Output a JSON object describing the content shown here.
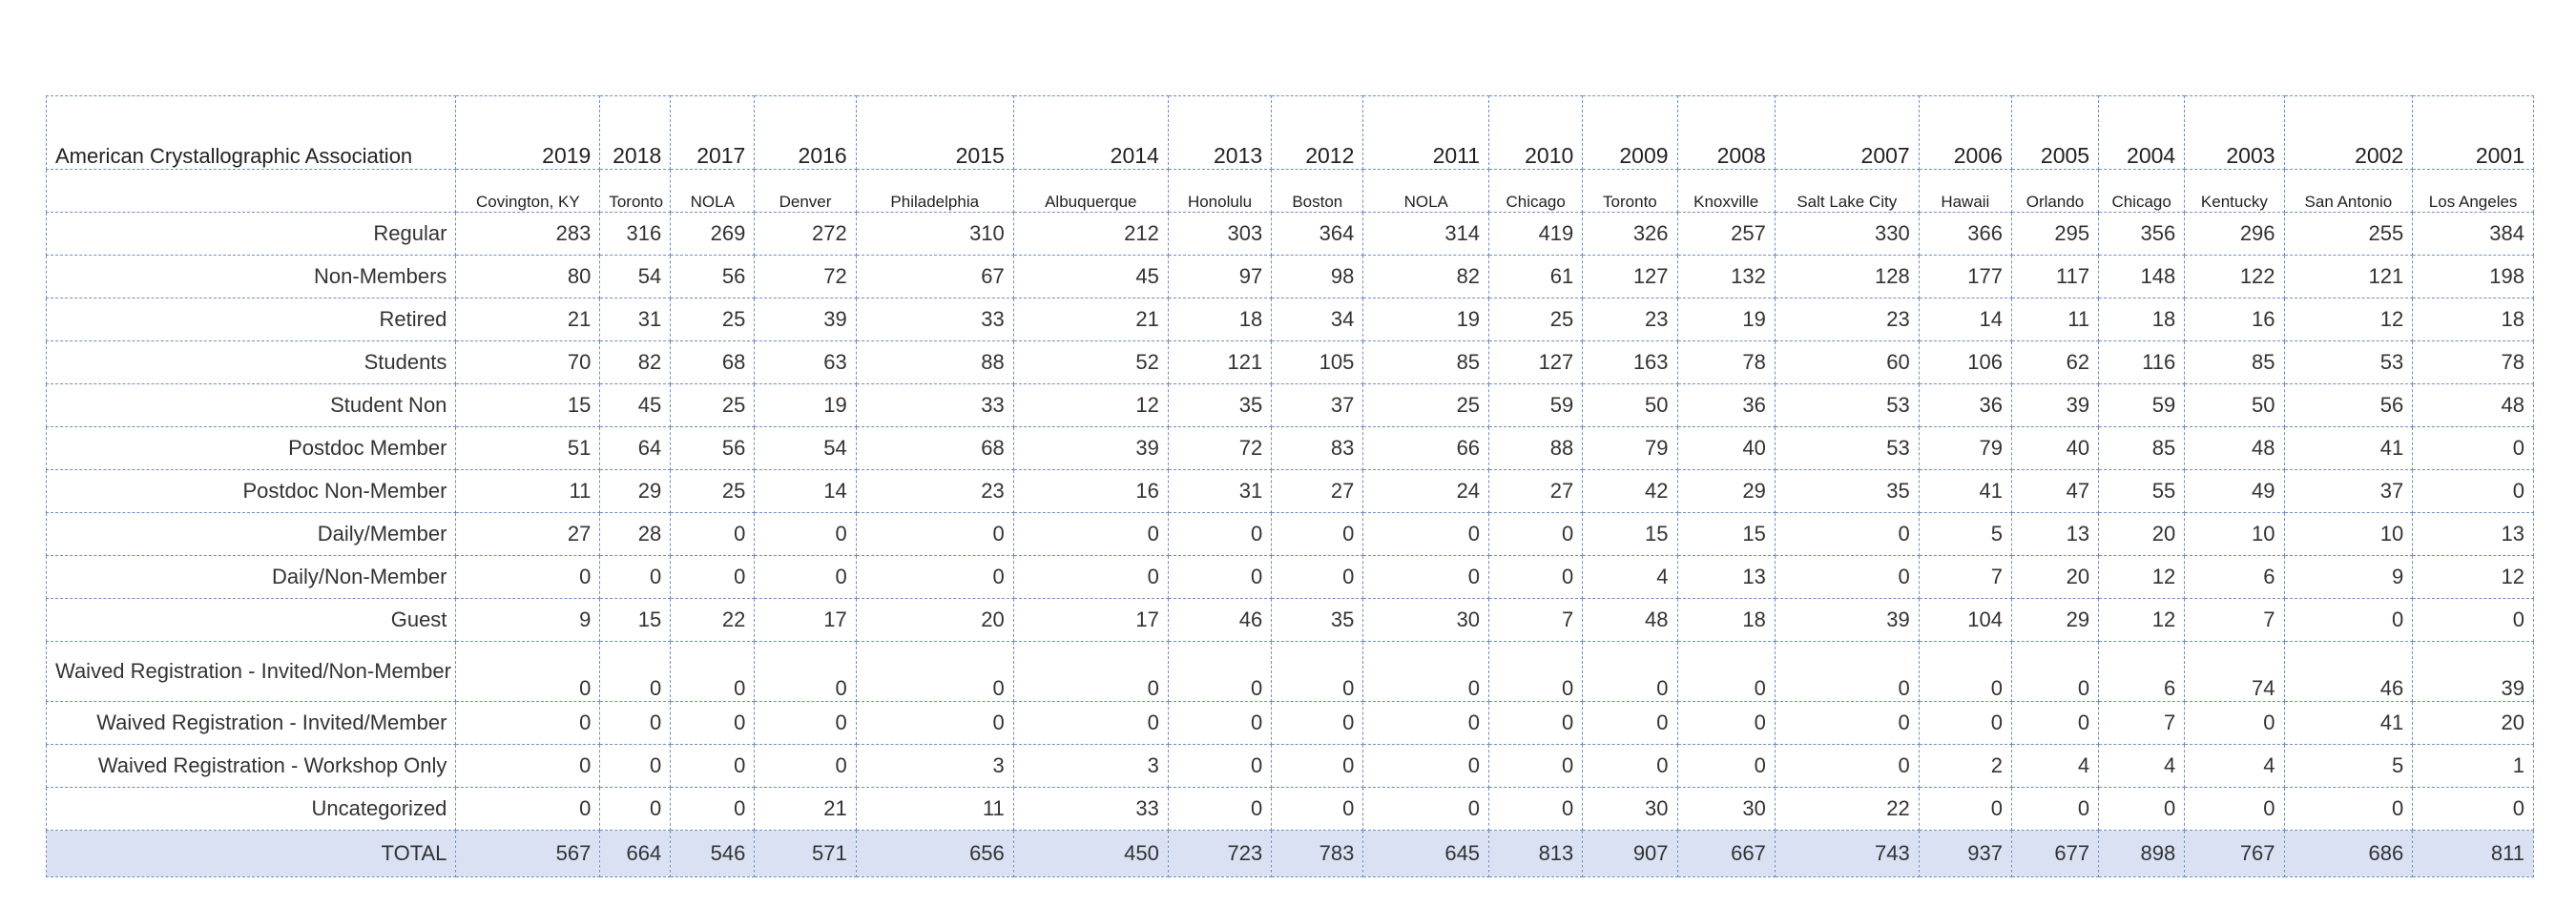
{
  "table": {
    "organization": "American Crystallographic Association",
    "years": [
      "2019",
      "2018",
      "2017",
      "2016",
      "2015",
      "2014",
      "2013",
      "2012",
      "2011",
      "2010",
      "2009",
      "2008",
      "2007",
      "2006",
      "2005",
      "2004",
      "2003",
      "2002",
      "2001"
    ],
    "cities": [
      "Covington, KY",
      "Toronto",
      "NOLA",
      "Denver",
      "Philadelphia",
      "Albuquerque",
      "Honolulu",
      "Boston",
      "NOLA",
      "Chicago",
      "Toronto",
      "Knoxville",
      "Salt Lake City",
      "Hawaii",
      "Orlando",
      "Chicago",
      "Kentucky",
      "San Antonio",
      "Los Angeles"
    ],
    "rows": [
      {
        "label": "Regular",
        "values": [
          "283",
          "316",
          "269",
          "272",
          "310",
          "212",
          "303",
          "364",
          "314",
          "419",
          "326",
          "257",
          "330",
          "366",
          "295",
          "356",
          "296",
          "255",
          "384"
        ]
      },
      {
        "label": "Non-Members",
        "values": [
          "80",
          "54",
          "56",
          "72",
          "67",
          "45",
          "97",
          "98",
          "82",
          "61",
          "127",
          "132",
          "128",
          "177",
          "117",
          "148",
          "122",
          "121",
          "198"
        ]
      },
      {
        "label": "Retired",
        "values": [
          "21",
          "31",
          "25",
          "39",
          "33",
          "21",
          "18",
          "34",
          "19",
          "25",
          "23",
          "19",
          "23",
          "14",
          "11",
          "18",
          "16",
          "12",
          "18"
        ]
      },
      {
        "label": "Students",
        "values": [
          "70",
          "82",
          "68",
          "63",
          "88",
          "52",
          "121",
          "105",
          "85",
          "127",
          "163",
          "78",
          "60",
          "106",
          "62",
          "116",
          "85",
          "53",
          "78"
        ]
      },
      {
        "label": "Student Non",
        "values": [
          "15",
          "45",
          "25",
          "19",
          "33",
          "12",
          "35",
          "37",
          "25",
          "59",
          "50",
          "36",
          "53",
          "36",
          "39",
          "59",
          "50",
          "56",
          "48"
        ]
      },
      {
        "label": "Postdoc Member",
        "values": [
          "51",
          "64",
          "56",
          "54",
          "68",
          "39",
          "72",
          "83",
          "66",
          "88",
          "79",
          "40",
          "53",
          "79",
          "40",
          "85",
          "48",
          "41",
          "0"
        ]
      },
      {
        "label": "Postdoc Non-Member",
        "values": [
          "11",
          "29",
          "25",
          "14",
          "23",
          "16",
          "31",
          "27",
          "24",
          "27",
          "42",
          "29",
          "35",
          "41",
          "47",
          "55",
          "49",
          "37",
          "0"
        ]
      },
      {
        "label": "Daily/Member",
        "values": [
          "27",
          "28",
          "0",
          "0",
          "0",
          "0",
          "0",
          "0",
          "0",
          "0",
          "15",
          "15",
          "0",
          "5",
          "13",
          "20",
          "10",
          "10",
          "13"
        ]
      },
      {
        "label": "Daily/Non-Member",
        "values": [
          "0",
          "0",
          "0",
          "0",
          "0",
          "0",
          "0",
          "0",
          "0",
          "0",
          "4",
          "13",
          "0",
          "7",
          "20",
          "12",
          "6",
          "9",
          "12"
        ]
      },
      {
        "label": "Guest",
        "values": [
          "9",
          "15",
          "22",
          "17",
          "20",
          "17",
          "46",
          "35",
          "30",
          "7",
          "48",
          "18",
          "39",
          "104",
          "29",
          "12",
          "7",
          "0",
          "0"
        ]
      },
      {
        "label": "Waived Registration - Invited/Non-Member",
        "values": [
          "0",
          "0",
          "0",
          "0",
          "0",
          "0",
          "0",
          "0",
          "0",
          "0",
          "0",
          "0",
          "0",
          "0",
          "0",
          "6",
          "74",
          "46",
          "39"
        ]
      },
      {
        "label": "Waived Registration - Invited/Member",
        "values": [
          "0",
          "0",
          "0",
          "0",
          "0",
          "0",
          "0",
          "0",
          "0",
          "0",
          "0",
          "0",
          "0",
          "0",
          "0",
          "7",
          "0",
          "41",
          "20"
        ]
      },
      {
        "label": "Waived Registration - Workshop Only",
        "values": [
          "0",
          "0",
          "0",
          "0",
          "3",
          "3",
          "0",
          "0",
          "0",
          "0",
          "0",
          "0",
          "0",
          "2",
          "4",
          "4",
          "4",
          "5",
          "1"
        ]
      },
      {
        "label": "Uncategorized",
        "values": [
          "0",
          "0",
          "0",
          "21",
          "11",
          "33",
          "0",
          "0",
          "0",
          "0",
          "30",
          "30",
          "22",
          "0",
          "0",
          "0",
          "0",
          "0",
          "0"
        ]
      }
    ],
    "total": {
      "label": "TOTAL",
      "values": [
        "567",
        "664",
        "546",
        "571",
        "656",
        "450",
        "723",
        "783",
        "645",
        "813",
        "907",
        "667",
        "743",
        "937",
        "677",
        "898",
        "767",
        "686",
        "811"
      ]
    }
  }
}
